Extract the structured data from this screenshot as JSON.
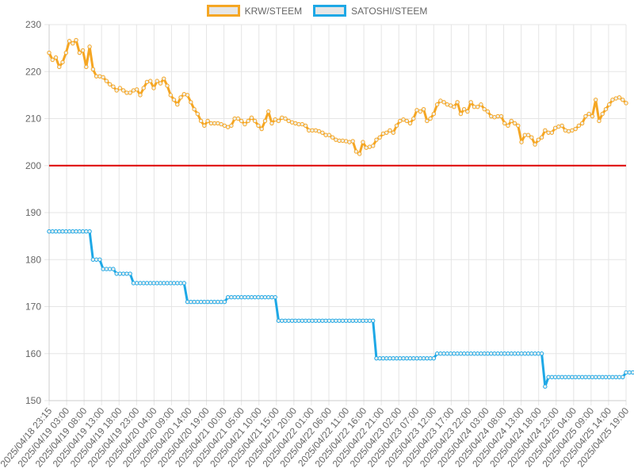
{
  "chart_data": {
    "type": "line",
    "title": "",
    "xlabel": "",
    "ylabel": "",
    "ylim": [
      150,
      230
    ],
    "yticks": [
      150,
      160,
      170,
      180,
      190,
      200,
      210,
      220,
      230
    ],
    "grid": true,
    "legend_position": "top-center",
    "x_tick_labels": [
      "2025/04/18 23:15",
      "2025/04/19 03:00",
      "2025/04/19 08:00",
      "2025/04/19 13:00",
      "2025/04/19 18:00",
      "2025/04/19 23:00",
      "2025/04/20 04:00",
      "2025/04/20 09:00",
      "2025/04/20 14:00",
      "2025/04/20 19:00",
      "2025/04/21 00:00",
      "2025/04/21 05:00",
      "2025/04/21 10:00",
      "2025/04/21 15:00",
      "2025/04/21 20:00",
      "2025/04/22 01:00",
      "2025/04/22 06:00",
      "2025/04/22 11:00",
      "2025/04/22 16:00",
      "2025/04/22 21:00",
      "2025/04/23 02:00",
      "2025/04/23 07:00",
      "2025/04/23 12:00",
      "2025/04/23 17:00",
      "2025/04/23 22:00",
      "2025/04/24 03:00",
      "2025/04/24 08:00",
      "2025/04/24 13:00",
      "2025/04/24 18:00",
      "2025/04/24 23:00",
      "2025/04/25 04:00",
      "2025/04/25 09:00",
      "2025/04/25 14:00",
      "2025/04/25 19:00"
    ],
    "reference_line": {
      "y": 200,
      "color": "#dd0000"
    },
    "series": [
      {
        "name": "KRW/STEEM",
        "color": "#f5a623",
        "values": [
          224.0,
          222.5,
          223.0,
          221.0,
          222.0,
          224.0,
          226.5,
          226.0,
          226.7,
          224.0,
          224.5,
          221.0,
          225.3,
          220.5,
          219.0,
          219.0,
          218.8,
          218.0,
          217.3,
          216.8,
          216.0,
          216.5,
          216.0,
          215.5,
          215.5,
          216.0,
          216.2,
          215.0,
          216.5,
          217.8,
          218.0,
          216.5,
          218.0,
          217.5,
          218.5,
          217.0,
          215.0,
          214.0,
          213.0,
          214.5,
          215.2,
          215.0,
          213.5,
          212.0,
          211.0,
          209.5,
          208.5,
          209.5,
          209.0,
          209.0,
          209.0,
          208.8,
          208.5,
          208.2,
          208.5,
          210.0,
          210.0,
          209.5,
          208.8,
          209.5,
          210.2,
          209.5,
          208.5,
          207.8,
          209.5,
          211.5,
          209.0,
          209.8,
          209.5,
          210.2,
          210.0,
          209.5,
          209.2,
          209.0,
          208.8,
          208.8,
          208.5,
          207.5,
          207.5,
          207.5,
          207.3,
          207.0,
          206.5,
          206.5,
          206.0,
          205.5,
          205.3,
          205.3,
          205.2,
          205.0,
          205.2,
          203.0,
          202.5,
          205.0,
          203.8,
          204.0,
          204.2,
          205.5,
          206.0,
          206.8,
          207.0,
          207.5,
          207.0,
          208.5,
          209.5,
          209.8,
          209.5,
          209.0,
          210.0,
          211.8,
          211.5,
          212.0,
          209.5,
          210.0,
          211.0,
          213.0,
          213.8,
          213.5,
          213.0,
          212.8,
          212.5,
          213.5,
          211.0,
          212.0,
          211.5,
          213.5,
          212.5,
          212.5,
          213.0,
          212.0,
          211.5,
          210.5,
          210.3,
          210.5,
          210.5,
          209.0,
          208.5,
          209.5,
          209.0,
          208.5,
          205.0,
          206.5,
          206.5,
          206.0,
          204.5,
          205.5,
          206.0,
          207.5,
          207.0,
          207.0,
          208.0,
          208.3,
          208.5,
          207.5,
          207.3,
          207.5,
          207.8,
          208.5,
          209.0,
          210.5,
          211.0,
          210.5,
          214.0,
          209.5,
          211.0,
          212.0,
          213.0,
          214.0,
          214.3,
          214.5,
          214.0,
          213.3
        ]
      },
      {
        "name": "SATOSHI/STEEM",
        "color": "#1ea8e6",
        "steps": [
          {
            "from": 0,
            "to": 12,
            "value": 186
          },
          {
            "from": 13,
            "to": 15,
            "value": 180
          },
          {
            "from": 16,
            "to": 19,
            "value": 178
          },
          {
            "from": 20,
            "to": 24,
            "value": 177
          },
          {
            "from": 25,
            "to": 40,
            "value": 175
          },
          {
            "from": 41,
            "to": 52,
            "value": 171
          },
          {
            "from": 53,
            "to": 67,
            "value": 172
          },
          {
            "from": 68,
            "to": 96,
            "value": 167
          },
          {
            "from": 97,
            "to": 114,
            "value": 159
          },
          {
            "from": 115,
            "to": 146,
            "value": 160
          },
          {
            "from": 147,
            "to": 147,
            "value": 153
          },
          {
            "from": 148,
            "to": 170,
            "value": 155
          },
          {
            "from": 171,
            "to": 174,
            "value": 156
          },
          {
            "from": 175,
            "to": 179,
            "value": 158
          }
        ]
      }
    ]
  }
}
